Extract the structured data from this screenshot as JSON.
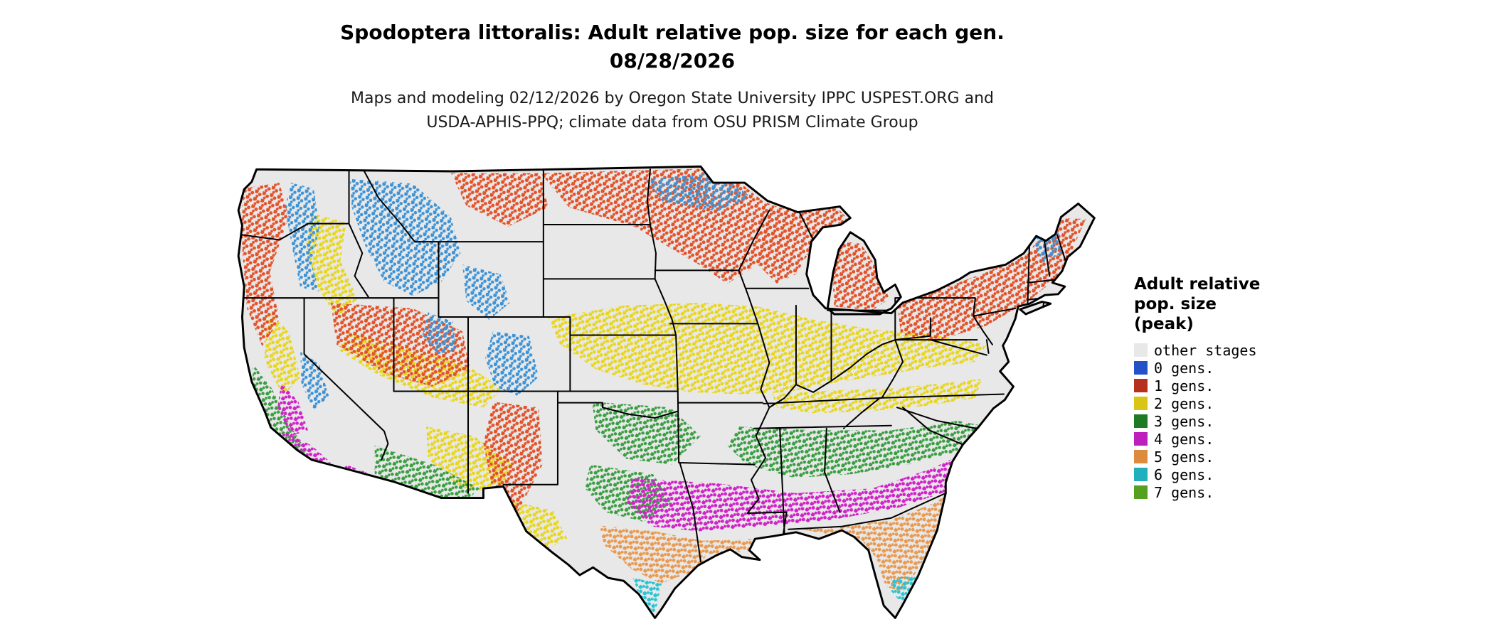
{
  "title": {
    "line1": "Spodoptera littoralis: Adult relative pop. size for each gen.",
    "line2": "08/28/2026"
  },
  "subtitle": {
    "line1": "Maps and modeling 02/12/2026 by Oregon State University IPPC USPEST.ORG and",
    "line2": "USDA-APHIS-PPQ; climate data from OSU PRISM Climate Group"
  },
  "legend": {
    "title_lines": [
      "Adult relative",
      "pop. size",
      "(peak)"
    ],
    "entries": [
      {
        "key": "other",
        "label": "other stages",
        "color": "#e8e8e8",
        "map_color": "#e8e8e8"
      },
      {
        "key": "gen0",
        "label": "0 gens.",
        "color": "#2351c8",
        "map_color": "#3d93d6"
      },
      {
        "key": "gen1",
        "label": "1 gens.",
        "color": "#b6301f",
        "map_color": "#e2532b"
      },
      {
        "key": "gen2",
        "label": "2 gens.",
        "color": "#d9c515",
        "map_color": "#e8d61f"
      },
      {
        "key": "gen3",
        "label": "3 gens.",
        "color": "#1f7a24",
        "map_color": "#3a9e42"
      },
      {
        "key": "gen4",
        "label": "4 gens.",
        "color": "#bc1fbc",
        "map_color": "#d023c8"
      },
      {
        "key": "gen5",
        "label": "5 gens.",
        "color": "#dd8b3d",
        "map_color": "#e89a52"
      },
      {
        "key": "gen6",
        "label": "6 gens.",
        "color": "#1fb0bb",
        "map_color": "#29c4d4"
      },
      {
        "key": "gen7",
        "label": "7 gens.",
        "color": "#55a021",
        "map_color": "#5db32a"
      }
    ]
  },
  "colors": {
    "background": "#ffffff",
    "land_base": "#e8e8e8",
    "map_border": "#000000"
  }
}
